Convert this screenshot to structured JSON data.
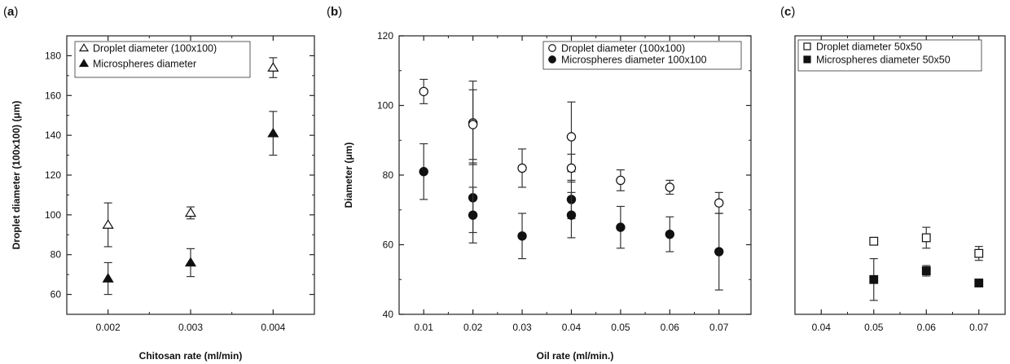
{
  "chart_data": [
    {
      "panel_label": "a",
      "type": "scatter",
      "xlabel": "Chitosan rate (ml/min)",
      "ylabel": "Droplet diameter (100x100) (μm)",
      "xlim": [
        0.0015,
        0.0045
      ],
      "ylim": [
        50,
        190
      ],
      "xticks": [
        "0.002",
        "0.003",
        "0.004"
      ],
      "xtick_values": [
        0.002,
        0.003,
        0.004
      ],
      "yticks": [
        60,
        80,
        100,
        120,
        140,
        160,
        180
      ],
      "legend_position": "top-left",
      "series": [
        {
          "name": "Droplet diameter (100x100)",
          "marker": "triangle-open",
          "x": [
            0.002,
            0.003,
            0.004
          ],
          "y": [
            95,
            101,
            174
          ],
          "err": [
            11,
            3,
            5
          ]
        },
        {
          "name": "Microspheres diameter",
          "marker": "triangle-filled",
          "x": [
            0.002,
            0.003,
            0.004
          ],
          "y": [
            68,
            76,
            141
          ],
          "err": [
            8,
            7,
            11
          ]
        }
      ]
    },
    {
      "panel_label": "b",
      "type": "scatter",
      "xlabel": "Oil rate (ml/min.)",
      "ylabel": "Diameter (μm)",
      "xlim": [
        0.005,
        0.0765
      ],
      "ylim": [
        40,
        120
      ],
      "xticks": [
        "0.01",
        "0.02",
        "0.03",
        "0.04",
        "0.05",
        "0.06",
        "0.07"
      ],
      "xtick_values": [
        0.01,
        0.02,
        0.03,
        0.04,
        0.05,
        0.06,
        0.07
      ],
      "yticks": [
        40,
        60,
        80,
        100,
        120
      ],
      "legend_position": "top-right",
      "series": [
        {
          "name": "Droplet diameter (100x100)",
          "marker": "circle-open",
          "x": [
            0.01,
            0.02,
            0.02,
            0.03,
            0.04,
            0.04,
            0.05,
            0.06,
            0.07
          ],
          "y": [
            104,
            95,
            94.5,
            82,
            91,
            82,
            78.5,
            76.5,
            72
          ],
          "err": [
            3.5,
            12,
            10,
            5.5,
            10,
            4,
            3,
            2,
            3
          ]
        },
        {
          "name": "Microspheres diameter 100x100",
          "marker": "circle-filled",
          "x": [
            0.01,
            0.02,
            0.02,
            0.03,
            0.04,
            0.04,
            0.05,
            0.06,
            0.07
          ],
          "y": [
            81,
            73.5,
            68.5,
            62.5,
            73,
            68.5,
            65,
            63,
            58
          ],
          "err": [
            8,
            10,
            8,
            6.5,
            5.5,
            6.5,
            6,
            5,
            11
          ]
        }
      ]
    },
    {
      "panel_label": "c",
      "type": "scatter",
      "xlabel": "",
      "ylabel": "",
      "xlim": [
        0.035,
        0.075
      ],
      "ylim": [
        40,
        120
      ],
      "xticks": [
        "0.04",
        "0.05",
        "0.06",
        "0.07"
      ],
      "xtick_values": [
        0.04,
        0.05,
        0.06,
        0.07
      ],
      "yticks": [],
      "legend_position": "top-left",
      "series": [
        {
          "name": "Droplet diameter 50x50",
          "marker": "square-open",
          "x": [
            0.05,
            0.06,
            0.07
          ],
          "y": [
            61,
            62,
            57.5
          ],
          "err": [
            1,
            3,
            2
          ]
        },
        {
          "name": "Microspheres diameter 50x50",
          "marker": "square-filled",
          "x": [
            0.05,
            0.06,
            0.07
          ],
          "y": [
            50,
            52.5,
            49
          ],
          "err": [
            6,
            1.5,
            1
          ]
        }
      ]
    }
  ]
}
